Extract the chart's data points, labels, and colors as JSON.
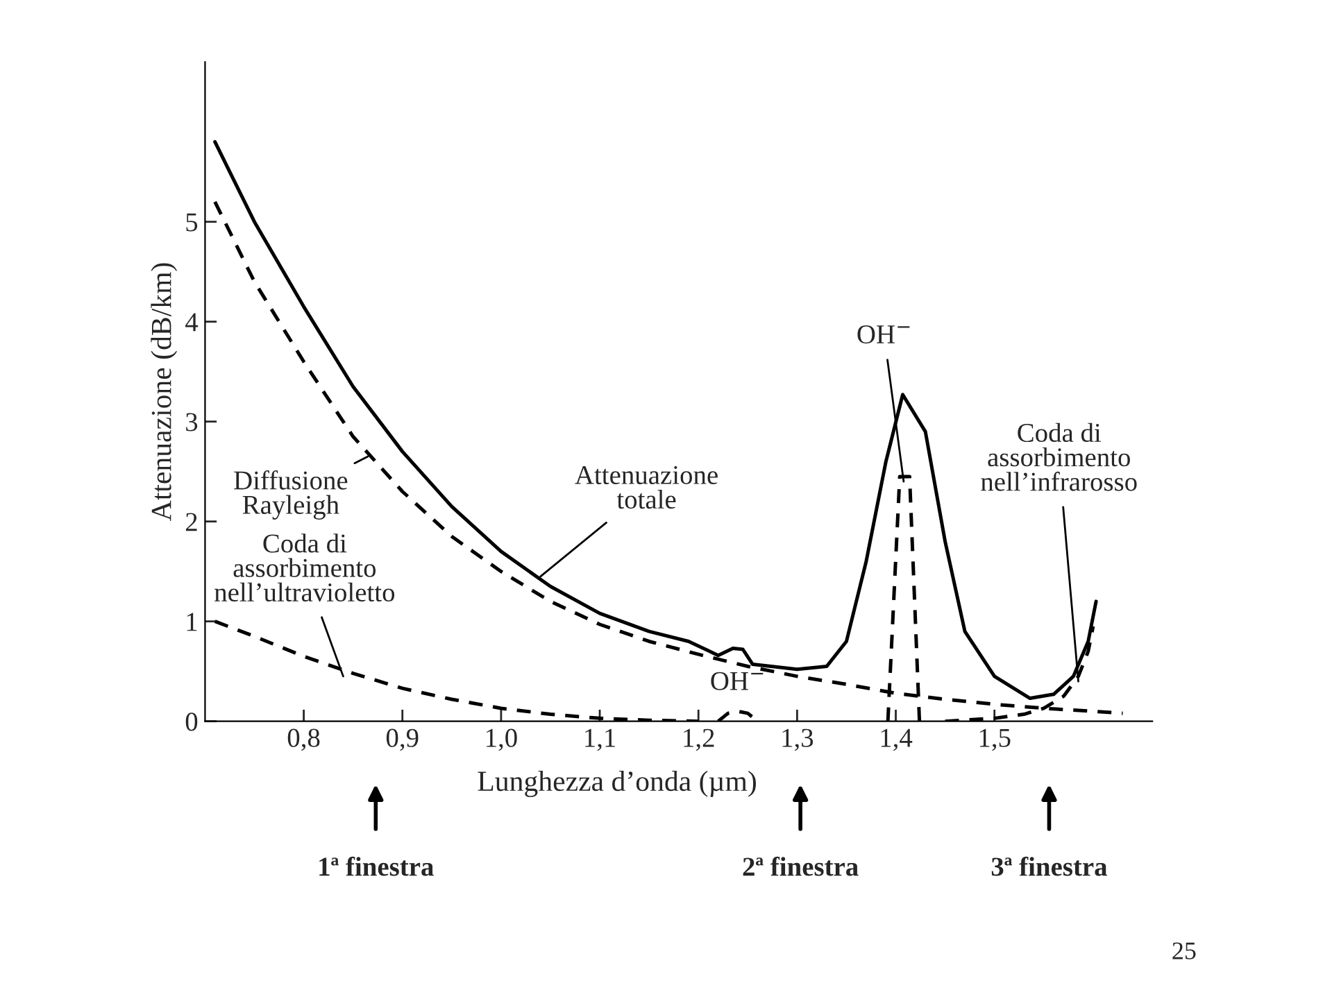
{
  "chart_data": {
    "type": "line",
    "xlabel": "Lunghezza d’onda (µm)",
    "ylabel": "Attenuazione (dB/km)",
    "xlim": [
      0.7,
      1.66
    ],
    "ylim": [
      0,
      6.6
    ],
    "xticks": [
      {
        "value": 0.8,
        "label": "0,8"
      },
      {
        "value": 0.9,
        "label": "0,9"
      },
      {
        "value": 1.0,
        "label": "1,0"
      },
      {
        "value": 1.1,
        "label": "1,1"
      },
      {
        "value": 1.2,
        "label": "1,2"
      },
      {
        "value": 1.3,
        "label": "1,3"
      },
      {
        "value": 1.4,
        "label": "1,4"
      },
      {
        "value": 1.5,
        "label": "1,5"
      }
    ],
    "yticks": [
      0,
      1,
      2,
      3,
      4,
      5
    ],
    "grid": false,
    "legend": false,
    "marker": "none",
    "series": [
      {
        "color": "#000000",
        "line_style": "solid",
        "x": [
          0.71,
          0.75,
          0.8,
          0.85,
          0.9,
          0.95,
          1.0,
          1.05,
          1.1,
          1.15,
          1.19,
          1.22,
          1.235,
          1.245,
          1.255,
          1.3,
          1.33,
          1.35,
          1.37,
          1.39,
          1.407,
          1.43,
          1.45,
          1.47,
          1.5,
          1.536,
          1.56,
          1.58,
          1.595,
          1.603
        ],
        "values": [
          5.8,
          5.0,
          4.15,
          3.35,
          2.7,
          2.15,
          1.7,
          1.35,
          1.08,
          0.9,
          0.8,
          0.66,
          0.73,
          0.72,
          0.57,
          0.52,
          0.55,
          0.8,
          1.6,
          2.6,
          3.27,
          2.9,
          1.8,
          0.9,
          0.45,
          0.23,
          0.27,
          0.45,
          0.8,
          1.2
        ]
      },
      {
        "color": "#000000",
        "line_style": "dashed",
        "x": [
          0.71,
          0.75,
          0.8,
          0.85,
          0.9,
          0.95,
          1.0,
          1.05,
          1.1,
          1.15,
          1.2,
          1.25,
          1.3,
          1.35,
          1.4,
          1.45,
          1.5,
          1.55,
          1.6,
          1.63
        ],
        "values": [
          5.2,
          4.4,
          3.6,
          2.85,
          2.3,
          1.85,
          1.5,
          1.2,
          0.97,
          0.8,
          0.67,
          0.55,
          0.45,
          0.37,
          0.28,
          0.22,
          0.17,
          0.13,
          0.1,
          0.08
        ]
      },
      {
        "color": "#000000",
        "line_style": "dashed",
        "x": [
          0.71,
          0.75,
          0.8,
          0.85,
          0.9,
          0.95,
          1.0,
          1.05,
          1.1,
          1.15,
          1.2
        ],
        "values": [
          1.0,
          0.85,
          0.65,
          0.48,
          0.33,
          0.22,
          0.13,
          0.07,
          0.03,
          0.01,
          0.0
        ]
      },
      {
        "color": "#000000",
        "line_style": "dashed",
        "x": [
          1.22,
          1.23,
          1.24,
          1.25,
          1.26
        ],
        "values": [
          0.0,
          0.08,
          0.1,
          0.08,
          0.0
        ]
      },
      {
        "color": "#000000",
        "line_style": "dashed",
        "x": [
          1.392,
          1.404,
          1.414,
          1.424
        ],
        "values": [
          0.0,
          2.45,
          2.45,
          0.0
        ]
      },
      {
        "color": "#000000",
        "line_style": "dashed",
        "x": [
          1.45,
          1.5,
          1.53,
          1.55,
          1.57,
          1.585,
          1.595,
          1.6
        ],
        "values": [
          0.0,
          0.03,
          0.07,
          0.13,
          0.25,
          0.45,
          0.7,
          0.95
        ]
      }
    ],
    "annotations": [
      {
        "text": "Diffusione\nRayleigh",
        "x": 0.865,
        "y": 2.65
      },
      {
        "text": "Attenuazione\ntotale",
        "x": 1.04,
        "y": 1.45
      },
      {
        "text": "Coda di\nassorbimento\nnell’ultravioletto",
        "x": 0.84,
        "y": 0.45
      },
      {
        "text": "OH$^{−}$",
        "x": 1.408,
        "y": 2.4
      },
      {
        "text": "OH$^{−}$",
        "x": 1.24,
        "y": 0.1
      },
      {
        "text": "Coda di\nassorbimento\nnell’infrarosso",
        "x": 1.585,
        "y": 0.4
      },
      "1ª finestra",
      "2ª finestra",
      "3ª finestra",
      "25"
    ]
  }
}
